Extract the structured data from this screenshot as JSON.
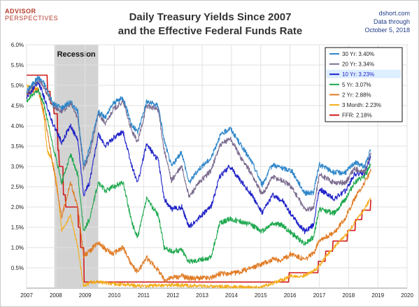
{
  "header": {
    "logo_line1": "ADVISOR",
    "logo_line2": "PERSPECTIVES",
    "title_line1": "Daily Treasury Yields Since 2007",
    "title_line2": "and the Effective Federal Funds Rate",
    "source_line1": "dshort.com",
    "source_line2": "Data through",
    "source_line3": "October 5, 2018"
  },
  "colors": {
    "brand": "#b33a2a",
    "source_text": "#1f3c88",
    "recession_band": "#d3d3d3"
  },
  "chart_data": {
    "type": "line",
    "title": "Daily Treasury Yields Since 2007 and the Effective Federal Funds Rate",
    "xlabel": "",
    "ylabel": "",
    "xlim": [
      2007,
      2020
    ],
    "ylim": [
      0,
      6
    ],
    "x_ticks": [
      "2007",
      "2008",
      "2009",
      "2010",
      "2011",
      "2012",
      "2013",
      "2014",
      "2015",
      "2016",
      "2017",
      "2018",
      "2019",
      "2020"
    ],
    "y_ticks": [
      "6.0%",
      "5.5%",
      "5.0%",
      "4.5%",
      "4.0%",
      "3.5%",
      "3.0%",
      "2.5%",
      "2.0%",
      "1.5%",
      "1.0%",
      "0.5%"
    ],
    "grid": true,
    "legend_position": "top-right",
    "recession": {
      "label": "Recession",
      "start": 2007.95,
      "end": 2009.45
    },
    "series": [
      {
        "name": "30 Yr: 3.40%",
        "color": "#2f86c9",
        "x": [
          2007.0,
          2007.4,
          2007.6,
          2007.9,
          2008.2,
          2008.5,
          2008.75,
          2008.95,
          2009.15,
          2009.45,
          2009.7,
          2009.95,
          2010.3,
          2010.6,
          2010.8,
          2011.1,
          2011.5,
          2011.7,
          2011.95,
          2012.3,
          2012.55,
          2012.9,
          2013.3,
          2013.6,
          2013.95,
          2014.3,
          2014.7,
          2015.05,
          2015.4,
          2015.75,
          2016.05,
          2016.5,
          2016.8,
          2017.0,
          2017.5,
          2017.9,
          2018.2,
          2018.55,
          2018.76
        ],
        "y": [
          4.85,
          5.2,
          5.05,
          4.55,
          4.45,
          4.6,
          4.35,
          3.0,
          3.45,
          4.35,
          4.2,
          4.55,
          4.7,
          4.0,
          3.85,
          4.6,
          4.5,
          3.65,
          3.0,
          3.35,
          2.6,
          2.95,
          3.2,
          3.75,
          3.95,
          3.55,
          3.1,
          2.55,
          3.05,
          2.95,
          2.9,
          2.35,
          2.35,
          3.05,
          2.85,
          2.85,
          3.1,
          3.0,
          3.4
        ]
      },
      {
        "name": "20 Yr: 3.34%",
        "color": "#7b6b8f",
        "x": [
          2007.0,
          2007.4,
          2007.6,
          2007.9,
          2008.2,
          2008.5,
          2008.75,
          2008.95,
          2009.15,
          2009.45,
          2009.7,
          2009.95,
          2010.3,
          2010.6,
          2010.8,
          2011.1,
          2011.5,
          2011.7,
          2011.95,
          2012.3,
          2012.55,
          2012.9,
          2013.3,
          2013.6,
          2013.95,
          2014.3,
          2014.7,
          2015.05,
          2015.4,
          2015.75,
          2016.05,
          2016.5,
          2016.8,
          2017.0,
          2017.5,
          2017.9,
          2018.2,
          2018.55,
          2018.76
        ],
        "y": [
          4.8,
          5.15,
          4.95,
          4.5,
          4.35,
          4.55,
          4.2,
          2.95,
          3.3,
          4.3,
          4.05,
          4.4,
          4.6,
          3.85,
          3.6,
          4.5,
          4.4,
          3.4,
          2.65,
          3.0,
          2.25,
          2.6,
          2.9,
          3.5,
          3.7,
          3.25,
          2.8,
          2.3,
          2.75,
          2.65,
          2.5,
          1.95,
          1.95,
          2.8,
          2.6,
          2.6,
          2.95,
          2.85,
          3.34
        ]
      },
      {
        "name": "10 Yr: 3.23%",
        "color": "#1f22c8",
        "x": [
          2007.0,
          2007.4,
          2007.6,
          2007.9,
          2008.2,
          2008.5,
          2008.75,
          2008.95,
          2009.15,
          2009.45,
          2009.7,
          2009.95,
          2010.3,
          2010.6,
          2010.8,
          2011.1,
          2011.5,
          2011.7,
          2011.95,
          2012.3,
          2012.55,
          2012.9,
          2013.3,
          2013.6,
          2013.95,
          2014.3,
          2014.7,
          2015.05,
          2015.4,
          2015.75,
          2016.05,
          2016.5,
          2016.8,
          2017.0,
          2017.5,
          2017.9,
          2018.2,
          2018.55,
          2018.76
        ],
        "y": [
          4.7,
          5.1,
          4.7,
          4.05,
          3.6,
          4.0,
          3.65,
          2.3,
          2.6,
          3.8,
          3.5,
          3.7,
          3.85,
          3.0,
          2.6,
          3.55,
          3.15,
          2.2,
          1.95,
          2.0,
          1.5,
          1.75,
          2.0,
          2.75,
          3.0,
          2.65,
          2.3,
          1.85,
          2.3,
          2.15,
          1.8,
          1.4,
          1.55,
          2.45,
          2.2,
          2.4,
          2.8,
          2.85,
          3.23
        ]
      },
      {
        "name": "5 Yr: 3.07%",
        "color": "#1ea84e",
        "x": [
          2007.0,
          2007.4,
          2007.6,
          2007.9,
          2008.2,
          2008.5,
          2008.75,
          2008.95,
          2009.15,
          2009.45,
          2009.7,
          2009.95,
          2010.3,
          2010.6,
          2010.8,
          2011.1,
          2011.5,
          2011.7,
          2011.95,
          2012.3,
          2012.55,
          2012.9,
          2013.3,
          2013.6,
          2013.95,
          2014.3,
          2014.7,
          2015.05,
          2015.4,
          2015.75,
          2016.05,
          2016.5,
          2016.8,
          2017.0,
          2017.5,
          2017.9,
          2018.2,
          2018.55,
          2018.76
        ],
        "y": [
          4.6,
          4.9,
          4.5,
          3.5,
          2.6,
          3.3,
          2.8,
          1.4,
          1.7,
          2.6,
          2.4,
          2.5,
          2.6,
          1.6,
          1.25,
          2.2,
          1.8,
          1.0,
          0.9,
          0.95,
          0.65,
          0.7,
          0.75,
          1.6,
          1.7,
          1.65,
          1.55,
          1.4,
          1.6,
          1.55,
          1.35,
          1.1,
          1.25,
          1.95,
          1.85,
          2.2,
          2.6,
          2.75,
          3.07
        ]
      },
      {
        "name": "2 Yr: 2.88%",
        "color": "#e07b24",
        "x": [
          2007.0,
          2007.4,
          2007.6,
          2007.9,
          2008.2,
          2008.5,
          2008.75,
          2008.95,
          2009.15,
          2009.45,
          2009.7,
          2009.95,
          2010.3,
          2010.6,
          2010.8,
          2011.1,
          2011.5,
          2011.7,
          2011.95,
          2012.3,
          2012.55,
          2012.9,
          2013.3,
          2013.6,
          2013.95,
          2014.3,
          2014.7,
          2015.05,
          2015.4,
          2015.75,
          2016.05,
          2016.5,
          2016.8,
          2017.0,
          2017.5,
          2017.9,
          2018.2,
          2018.55,
          2018.76
        ],
        "y": [
          4.8,
          4.9,
          4.3,
          3.05,
          1.75,
          2.6,
          2.0,
          0.8,
          0.9,
          1.15,
          0.95,
          0.85,
          1.0,
          0.55,
          0.4,
          0.75,
          0.45,
          0.2,
          0.25,
          0.3,
          0.25,
          0.25,
          0.25,
          0.35,
          0.35,
          0.4,
          0.5,
          0.6,
          0.7,
          0.7,
          0.85,
          0.7,
          0.85,
          1.2,
          1.35,
          1.75,
          2.2,
          2.6,
          2.88
        ]
      },
      {
        "name": "3 Month: 2.23%",
        "color": "#f4ad1b",
        "x": [
          2007.0,
          2007.4,
          2007.6,
          2007.7,
          2007.9,
          2008.05,
          2008.2,
          2008.5,
          2008.75,
          2008.95,
          2009.2,
          2009.5,
          2010.0,
          2011.0,
          2012.0,
          2013.0,
          2014.0,
          2015.0,
          2015.9,
          2016.0,
          2016.5,
          2016.95,
          2017.2,
          2017.5,
          2017.9,
          2018.2,
          2018.55,
          2018.76
        ],
        "y": [
          5.0,
          4.9,
          4.2,
          3.4,
          3.1,
          2.5,
          1.4,
          1.8,
          1.0,
          0.05,
          0.15,
          0.15,
          0.1,
          0.05,
          0.08,
          0.05,
          0.03,
          0.02,
          0.25,
          0.3,
          0.3,
          0.5,
          0.75,
          1.0,
          1.3,
          1.6,
          1.95,
          2.23
        ]
      },
      {
        "name": "FFR: 2.18%",
        "color": "#d01919",
        "x": [
          2007.0,
          2007.7,
          2007.72,
          2007.8,
          2007.82,
          2007.92,
          2007.94,
          2008.05,
          2008.07,
          2008.1,
          2008.12,
          2008.24,
          2008.26,
          2008.32,
          2008.34,
          2008.75,
          2008.77,
          2008.83,
          2008.85,
          2008.95,
          2008.97,
          2015.95,
          2015.97,
          2016.95,
          2016.97,
          2017.2,
          2017.22,
          2017.45,
          2017.47,
          2017.95,
          2017.97,
          2018.22,
          2018.24,
          2018.45,
          2018.47,
          2018.74,
          2018.76
        ],
        "y": [
          5.25,
          5.25,
          4.85,
          4.85,
          4.55,
          4.55,
          4.3,
          4.3,
          3.4,
          3.4,
          3.0,
          3.0,
          2.3,
          2.3,
          2.0,
          2.0,
          1.5,
          1.5,
          1.0,
          1.0,
          0.15,
          0.15,
          0.38,
          0.38,
          0.66,
          0.66,
          0.91,
          0.91,
          1.16,
          1.16,
          1.42,
          1.42,
          1.69,
          1.69,
          1.92,
          1.92,
          2.18
        ]
      }
    ]
  }
}
